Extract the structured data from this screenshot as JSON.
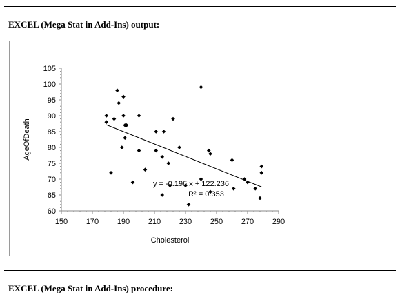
{
  "page": {
    "top_heading": "EXCEL (Mega Stat in  Add-Ins) output:",
    "bottom_heading": "EXCEL (Mega Stat in  Add-Ins) procedure:"
  },
  "chart_data": {
    "type": "scatter",
    "title": "",
    "xlabel": "Cholesterol",
    "ylabel": "AgeOfDeath",
    "xlim": [
      150,
      290
    ],
    "ylim": [
      60,
      105
    ],
    "x_ticks": [
      150,
      170,
      190,
      210,
      230,
      250,
      270,
      290
    ],
    "y_ticks": [
      60,
      65,
      70,
      75,
      80,
      85,
      90,
      95,
      100,
      105
    ],
    "grid": false,
    "legend": "none",
    "marker_color": "#000000",
    "trendline": {
      "slope": -0.196,
      "intercept": 122.236,
      "x_range": [
        179,
        279
      ],
      "equation_label": "y = -0.196 x + 122.236",
      "r2_label": "R² = 0.353"
    },
    "points": [
      {
        "x": 179,
        "y": 90
      },
      {
        "x": 179,
        "y": 88
      },
      {
        "x": 182,
        "y": 72
      },
      {
        "x": 184,
        "y": 89
      },
      {
        "x": 186,
        "y": 98
      },
      {
        "x": 187,
        "y": 94
      },
      {
        "x": 189,
        "y": 80
      },
      {
        "x": 190,
        "y": 96
      },
      {
        "x": 190,
        "y": 90
      },
      {
        "x": 191,
        "y": 83
      },
      {
        "x": 191,
        "y": 87
      },
      {
        "x": 192,
        "y": 87
      },
      {
        "x": 196,
        "y": 69
      },
      {
        "x": 200,
        "y": 90
      },
      {
        "x": 200,
        "y": 79
      },
      {
        "x": 204,
        "y": 73
      },
      {
        "x": 211,
        "y": 85
      },
      {
        "x": 211,
        "y": 79
      },
      {
        "x": 215,
        "y": 77
      },
      {
        "x": 215,
        "y": 65
      },
      {
        "x": 216,
        "y": 85
      },
      {
        "x": 219,
        "y": 75
      },
      {
        "x": 220,
        "y": 68
      },
      {
        "x": 222,
        "y": 89
      },
      {
        "x": 226,
        "y": 80
      },
      {
        "x": 230,
        "y": 68
      },
      {
        "x": 232,
        "y": 62
      },
      {
        "x": 240,
        "y": 99
      },
      {
        "x": 240,
        "y": 70
      },
      {
        "x": 245,
        "y": 79
      },
      {
        "x": 246,
        "y": 78
      },
      {
        "x": 246,
        "y": 66
      },
      {
        "x": 260,
        "y": 76
      },
      {
        "x": 261,
        "y": 67
      },
      {
        "x": 268,
        "y": 70
      },
      {
        "x": 270,
        "y": 69
      },
      {
        "x": 275,
        "y": 67
      },
      {
        "x": 278,
        "y": 64
      },
      {
        "x": 279,
        "y": 74
      },
      {
        "x": 279,
        "y": 72
      }
    ]
  }
}
